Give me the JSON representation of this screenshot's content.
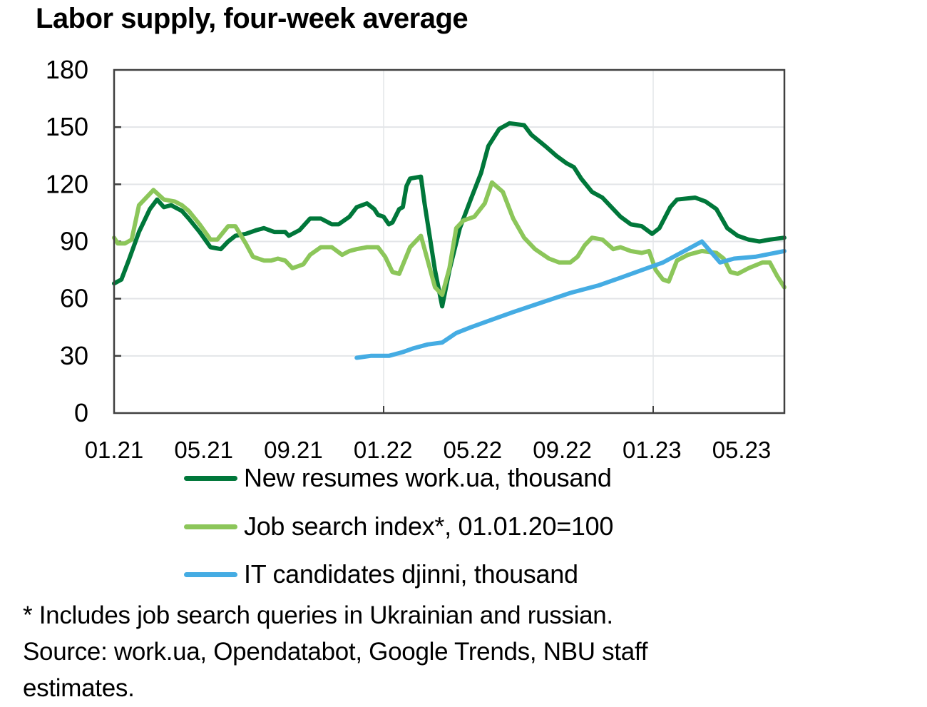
{
  "chart_data": {
    "type": "line",
    "title": "Labor supply, four-week average",
    "xlabel": "",
    "ylabel": "",
    "ylim": [
      0,
      180
    ],
    "yticks": [
      0,
      30,
      60,
      90,
      120,
      150,
      180
    ],
    "xtick_labels": [
      "01.21",
      "05.21",
      "09.21",
      "01.22",
      "05.22",
      "09.22",
      "01.23",
      "05.23"
    ],
    "grid": {
      "horizontal": true,
      "vertical_year_lines": [
        "01.22",
        "01.23"
      ]
    },
    "legend_position": "bottom",
    "x_unit": "weeks since 01.01.2021",
    "series": [
      {
        "name": "New resumes work.ua, thousand",
        "color": "#00773A",
        "points": [
          [
            0,
            68
          ],
          [
            1.4,
            70
          ],
          [
            2.8,
            80
          ],
          [
            4.8,
            95
          ],
          [
            6.9,
            107
          ],
          [
            8.3,
            112
          ],
          [
            9.6,
            108
          ],
          [
            11,
            109
          ],
          [
            13.1,
            106
          ],
          [
            14.4,
            102
          ],
          [
            16.5,
            95
          ],
          [
            18.6,
            87
          ],
          [
            20.6,
            86
          ],
          [
            22,
            90
          ],
          [
            23.4,
            93
          ],
          [
            25.4,
            94
          ],
          [
            27.5,
            96
          ],
          [
            28.9,
            97
          ],
          [
            30.9,
            95
          ],
          [
            33,
            95
          ],
          [
            33.7,
            93
          ],
          [
            35.8,
            96
          ],
          [
            37.8,
            102
          ],
          [
            39.9,
            102
          ],
          [
            42,
            99
          ],
          [
            43.3,
            99
          ],
          [
            45.4,
            103
          ],
          [
            46.8,
            108
          ],
          [
            48.8,
            110
          ],
          [
            50.2,
            107
          ],
          [
            50.9,
            104
          ],
          [
            52,
            103
          ],
          [
            53,
            99
          ],
          [
            53.7,
            100
          ],
          [
            55,
            107
          ],
          [
            55.7,
            108
          ],
          [
            56.4,
            119
          ],
          [
            57.1,
            123
          ],
          [
            59.2,
            124
          ],
          [
            59.9,
            110
          ],
          [
            61.9,
            75
          ],
          [
            63.3,
            56
          ],
          [
            64.7,
            75
          ],
          [
            66.7,
            97
          ],
          [
            68.8,
            112
          ],
          [
            70.8,
            126
          ],
          [
            72.2,
            140
          ],
          [
            74.3,
            149
          ],
          [
            76.3,
            152
          ],
          [
            79.1,
            151
          ],
          [
            80.5,
            146
          ],
          [
            83.2,
            140
          ],
          [
            85.3,
            135
          ],
          [
            87.3,
            131
          ],
          [
            88.7,
            129
          ],
          [
            90.1,
            123
          ],
          [
            92.2,
            116
          ],
          [
            94.2,
            113
          ],
          [
            96.3,
            107
          ],
          [
            97.7,
            103
          ],
          [
            99.7,
            99
          ],
          [
            101.8,
            98
          ],
          [
            103.8,
            94
          ],
          [
            105.2,
            97
          ],
          [
            107.3,
            108
          ],
          [
            108.6,
            112
          ],
          [
            112.1,
            113
          ],
          [
            114.1,
            111
          ],
          [
            116.2,
            107
          ],
          [
            118.3,
            97
          ],
          [
            120.3,
            93
          ],
          [
            122.4,
            91
          ],
          [
            124.5,
            90
          ],
          [
            126.5,
            91
          ],
          [
            129.3,
            92
          ]
        ]
      },
      {
        "name": "Job search index*, 01.01.20=100",
        "color": "#8CC65A",
        "points": [
          [
            0,
            92
          ],
          [
            0.7,
            89
          ],
          [
            2.1,
            89
          ],
          [
            3.4,
            91
          ],
          [
            4.8,
            109
          ],
          [
            6.2,
            113
          ],
          [
            7.6,
            117
          ],
          [
            9.6,
            112
          ],
          [
            11.7,
            111
          ],
          [
            13.1,
            109
          ],
          [
            14.4,
            106
          ],
          [
            16.5,
            99
          ],
          [
            18.6,
            91
          ],
          [
            19.9,
            91
          ],
          [
            22,
            98
          ],
          [
            23.4,
            98
          ],
          [
            25.4,
            89
          ],
          [
            26.8,
            82
          ],
          [
            28.9,
            80
          ],
          [
            30.3,
            80
          ],
          [
            31.6,
            81
          ],
          [
            33,
            80
          ],
          [
            34.4,
            76
          ],
          [
            36.5,
            78
          ],
          [
            37.8,
            83
          ],
          [
            39.9,
            87
          ],
          [
            42,
            87
          ],
          [
            44,
            83
          ],
          [
            45.4,
            85
          ],
          [
            46.8,
            86
          ],
          [
            48.8,
            87
          ],
          [
            50.9,
            87
          ],
          [
            52.3,
            82
          ],
          [
            53.7,
            74
          ],
          [
            55,
            73
          ],
          [
            57.1,
            87
          ],
          [
            59.2,
            93
          ],
          [
            60.5,
            80
          ],
          [
            61.9,
            66
          ],
          [
            63.3,
            62
          ],
          [
            64.7,
            76
          ],
          [
            66,
            97
          ],
          [
            67.4,
            101
          ],
          [
            69.5,
            103
          ],
          [
            71.5,
            110
          ],
          [
            72.9,
            121
          ],
          [
            75,
            116
          ],
          [
            77,
            102
          ],
          [
            79.1,
            92
          ],
          [
            81.2,
            86
          ],
          [
            83.9,
            81
          ],
          [
            85.9,
            79
          ],
          [
            88,
            79
          ],
          [
            89.4,
            82
          ],
          [
            90.8,
            88
          ],
          [
            92.2,
            92
          ],
          [
            94.2,
            91
          ],
          [
            96.3,
            86
          ],
          [
            97.7,
            87
          ],
          [
            99.7,
            85
          ],
          [
            101.8,
            84
          ],
          [
            103.2,
            85
          ],
          [
            104.5,
            75
          ],
          [
            105.9,
            70
          ],
          [
            107,
            69
          ],
          [
            108.6,
            80
          ],
          [
            110.7,
            83
          ],
          [
            113.4,
            85
          ],
          [
            116.2,
            84
          ],
          [
            117.6,
            81
          ],
          [
            118.9,
            74
          ],
          [
            120.3,
            73
          ],
          [
            122.4,
            76
          ],
          [
            125.1,
            79
          ],
          [
            126.5,
            79
          ],
          [
            127.9,
            72
          ],
          [
            129.3,
            66
          ]
        ]
      },
      {
        "name": "IT candidates djinni, thousand",
        "color": "#45ACE3",
        "points": [
          [
            46.8,
            29
          ],
          [
            49.5,
            30
          ],
          [
            53,
            30
          ],
          [
            55.7,
            32
          ],
          [
            57.8,
            34
          ],
          [
            60.5,
            36
          ],
          [
            63.3,
            37
          ],
          [
            66,
            42
          ],
          [
            68.8,
            45
          ],
          [
            72.9,
            49
          ],
          [
            77,
            53
          ],
          [
            82.5,
            58
          ],
          [
            88,
            63
          ],
          [
            93.5,
            67
          ],
          [
            97.7,
            71
          ],
          [
            101.8,
            75
          ],
          [
            105.9,
            79
          ],
          [
            110,
            85
          ],
          [
            113.4,
            90
          ],
          [
            116.9,
            79
          ],
          [
            119.6,
            81
          ],
          [
            123.7,
            82
          ],
          [
            129.3,
            85
          ]
        ]
      }
    ]
  },
  "legend": {
    "items": [
      {
        "label": "New resumes work.ua, thousand",
        "color": "#00773A"
      },
      {
        "label": "Job search index*, 01.01.20=100",
        "color": "#8CC65A"
      },
      {
        "label": "IT candidates djinni, thousand",
        "color": "#45ACE3"
      }
    ]
  },
  "notes": {
    "footnote": "* Includes job search queries in Ukrainian and russian.",
    "source_line1": "Source: work.ua, Opendatabot, Google Trends, NBU staff",
    "source_line2": "estimates."
  }
}
